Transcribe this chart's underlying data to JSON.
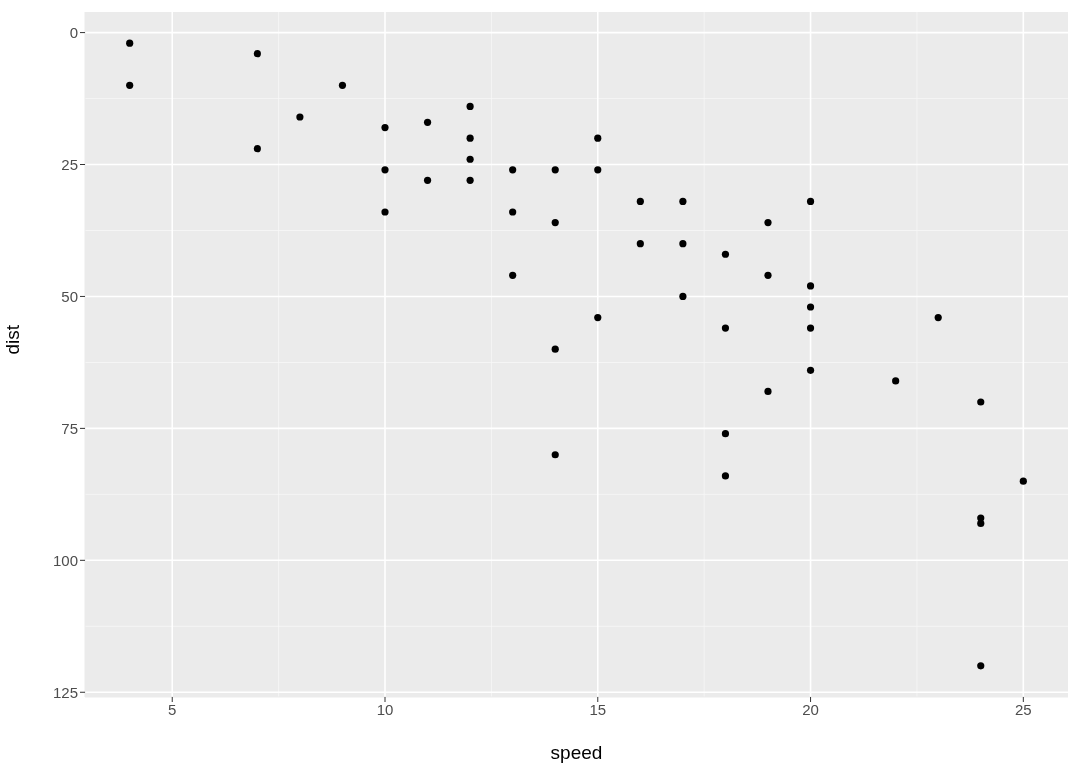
{
  "chart_data": {
    "type": "scatter",
    "xlabel": "speed",
    "ylabel": "dist",
    "x": [
      4,
      4,
      7,
      7,
      8,
      9,
      10,
      10,
      10,
      11,
      11,
      12,
      12,
      12,
      12,
      13,
      13,
      13,
      14,
      14,
      14,
      14,
      15,
      15,
      15,
      16,
      16,
      17,
      17,
      17,
      18,
      18,
      18,
      18,
      19,
      19,
      19,
      20,
      20,
      20,
      20,
      20,
      22,
      23,
      24,
      24,
      24,
      24,
      25
    ],
    "values": [
      2,
      10,
      4,
      22,
      16,
      10,
      18,
      26,
      34,
      17,
      28,
      14,
      20,
      24,
      28,
      26,
      34,
      46,
      26,
      36,
      60,
      80,
      20,
      26,
      54,
      32,
      40,
      32,
      40,
      50,
      42,
      56,
      76,
      84,
      36,
      46,
      68,
      32,
      48,
      52,
      56,
      64,
      66,
      54,
      70,
      92,
      93,
      120,
      85
    ],
    "color": "#000000",
    "marker": "circle",
    "xlim": [
      2.95,
      26.05
    ],
    "xticks": [
      5,
      10,
      15,
      20,
      25
    ],
    "ylim": [
      125.9,
      -3.9
    ],
    "yticks": [
      0,
      25,
      50,
      75,
      100,
      125
    ],
    "grid": true
  }
}
